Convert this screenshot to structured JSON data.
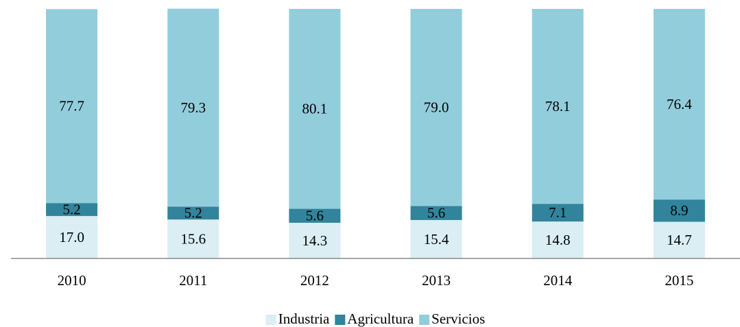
{
  "chart_data": {
    "type": "stacked_bar",
    "categories": [
      "2010",
      "2011",
      "2012",
      "2013",
      "2014",
      "2015"
    ],
    "series": [
      {
        "name": "Industria",
        "color": "#daeef3",
        "values": [
          17.0,
          15.6,
          14.3,
          15.4,
          14.8,
          14.7
        ],
        "value_labels": [
          "17.0",
          "15.6",
          "14.3",
          "15.4",
          "14.8",
          "14.7"
        ]
      },
      {
        "name": "Agricultura",
        "color": "#31849b",
        "values": [
          5.2,
          5.2,
          5.6,
          5.6,
          7.1,
          8.9
        ],
        "value_labels": [
          "5.2",
          "5.2",
          "5.6",
          "5.6",
          "7.1",
          "8.9"
        ]
      },
      {
        "name": "Servicios",
        "color": "#92cddc",
        "values": [
          77.7,
          79.3,
          80.1,
          79.0,
          78.1,
          76.4
        ],
        "value_labels": [
          "77.7",
          "79.3",
          "80.1",
          "79.0",
          "78.1",
          "76.4"
        ]
      }
    ],
    "ylim": [
      0,
      100
    ],
    "legend": "bottom"
  }
}
